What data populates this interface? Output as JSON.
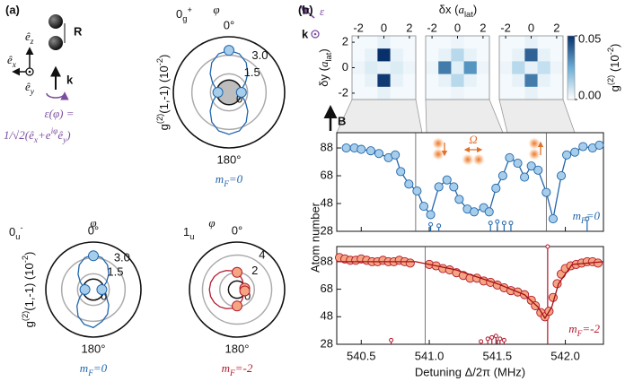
{
  "panel_a": {
    "label": "(a)",
    "ez": [
      "ê",
      "z"
    ],
    "ex": [
      "ê",
      "x"
    ],
    "ey": [
      "ê",
      "y"
    ],
    "R": "R",
    "k": "k",
    "pol_def": "ε(φ) =",
    "pol_expr": [
      "1/√2(",
      "ê",
      "x",
      "+e",
      "iφ",
      "ê",
      "y",
      ")"
    ]
  },
  "panel_b": {
    "label": "(b)",
    "eps": "ε",
    "k": "k",
    "B": "B",
    "omega": "Ω",
    "ylabel": "Atom number"
  },
  "chart_data": [
    {
      "type": "polar",
      "title": [
        "0",
        "g",
        "+"
      ],
      "angle_label": "φ",
      "angle_ticks": [
        {
          "value": 0,
          "label": "0°"
        },
        {
          "value": 180,
          "label": "180°"
        }
      ],
      "ylabel": [
        "g",
        "(2)",
        "(1,-1) (10",
        "-2",
        ")"
      ],
      "rlim": [
        0,
        4.5
      ],
      "rticks": [
        0,
        1.5,
        {
          "value": 3,
          "label": "3.0"
        }
      ],
      "reference_circle": 1,
      "reference_fill": "#bdbdbd",
      "curve": {
        "color": "#2166ac",
        "angles": [
          0,
          15,
          30,
          45,
          60,
          75,
          90,
          105,
          120,
          135,
          150,
          165,
          180,
          195,
          210,
          225,
          240,
          255,
          270,
          285,
          300,
          315,
          330,
          345
        ],
        "values": [
          3.4,
          3.23,
          2.78,
          2.15,
          1.53,
          1.07,
          0.9,
          1.07,
          1.53,
          2.15,
          2.78,
          3.23,
          3.4,
          3.23,
          2.78,
          2.15,
          1.53,
          1.07,
          0.9,
          1.07,
          1.53,
          2.15,
          2.78,
          3.23
        ]
      },
      "points": {
        "color": "#2166ac",
        "fill": "#a6cde9",
        "angles": [
          0,
          90,
          270
        ],
        "values": [
          3.4,
          1.0,
          0.9
        ]
      },
      "legend": [
        "m",
        "F",
        "=0"
      ]
    },
    {
      "type": "polar",
      "title": [
        "0",
        "u",
        "-"
      ],
      "angle_label": "φ",
      "angle_ticks": [
        {
          "value": 0,
          "label": "0°"
        },
        {
          "value": 180,
          "label": "180°"
        }
      ],
      "ylabel": [
        "g",
        "(2)",
        "(1,-1) (10",
        "-2",
        ")"
      ],
      "rlim": [
        0,
        4.5
      ],
      "rticks": [
        0,
        1.5,
        {
          "value": 3,
          "label": "3.0"
        }
      ],
      "reference_circle": 1,
      "curve": {
        "color": "#2166ac",
        "angles": [
          0,
          15,
          30,
          45,
          60,
          75,
          90,
          105,
          120,
          135,
          150,
          165,
          180,
          195,
          210,
          225,
          240,
          255,
          270,
          285,
          300,
          315,
          330,
          345
        ],
        "values": [
          3.3,
          3.13,
          2.68,
          2.05,
          1.43,
          0.97,
          0.8,
          0.97,
          1.43,
          2.05,
          2.68,
          3.13,
          3.6,
          3.4,
          2.9,
          2.2,
          1.5,
          1.0,
          0.8,
          0.97,
          1.43,
          2.05,
          2.68,
          3.13
        ]
      },
      "points": {
        "color": "#2166ac",
        "fill": "#a6cde9",
        "angles": [
          0,
          90,
          270
        ],
        "values": [
          3.2,
          0.8,
          0.8
        ]
      },
      "legend": [
        "m",
        "F",
        "=0"
      ]
    },
    {
      "type": "polar",
      "title": [
        "1",
        "u"
      ],
      "angle_label": "φ",
      "angle_ticks": [
        {
          "value": 0,
          "label": "0°"
        },
        {
          "value": 180,
          "label": "180°"
        }
      ],
      "rlim": [
        0,
        5.5
      ],
      "rticks": [
        0,
        2,
        4
      ],
      "reference_circle": 1,
      "curve": {
        "color": "#b2182b",
        "angles": [
          0,
          15,
          30,
          45,
          60,
          75,
          90,
          105,
          120,
          135,
          150,
          165,
          180,
          195,
          210,
          225,
          240,
          255,
          270,
          285,
          300,
          315,
          330,
          345
        ],
        "values": [
          1.9,
          1.56,
          1.25,
          0.98,
          0.77,
          0.64,
          0.6,
          0.64,
          0.77,
          0.98,
          1.25,
          1.56,
          1.9,
          2.24,
          2.55,
          2.82,
          3.03,
          3.16,
          3.2,
          3.16,
          3.03,
          2.82,
          2.55,
          2.24
        ]
      },
      "points": {
        "color": "#b2182b",
        "fill": "#f4a582",
        "angles": [
          0,
          80,
          100,
          180
        ],
        "values": [
          2.0,
          0.9,
          0.9,
          1.9
        ]
      },
      "legend": [
        "m",
        "F",
        "=-2"
      ]
    },
    {
      "type": "heatmap",
      "xlabel": [
        "δx (",
        "a",
        "lat",
        ")"
      ],
      "ylabel": [
        "δy (",
        "a",
        "lat",
        ")"
      ],
      "xlim": [
        -2.5,
        2.5
      ],
      "ylim": [
        -2.5,
        2.5
      ],
      "xticks": [
        -2,
        0,
        2
      ],
      "yticks": [
        -2,
        0,
        2
      ],
      "clim": [
        0,
        0.05
      ],
      "cticks": [
        {
          "value": 0,
          "label": "0.00"
        },
        {
          "value": 0.05,
          "label": "0.05"
        }
      ],
      "clabel": [
        "g",
        "(2)",
        " (10",
        "-2",
        ")"
      ],
      "colormap": [
        "#ffffff",
        "#6baed6",
        "#08306b"
      ],
      "images": [
        [
          [
            0.002,
            0.002,
            0.004,
            0.002,
            0.002
          ],
          [
            0.002,
            0.004,
            0.05,
            0.004,
            0.002
          ],
          [
            0.003,
            0.006,
            0.004,
            0.006,
            0.003
          ],
          [
            0.002,
            0.004,
            0.048,
            0.004,
            0.002
          ],
          [
            0.002,
            0.002,
            0.004,
            0.002,
            0.002
          ]
        ],
        [
          [
            0.002,
            0.002,
            0.003,
            0.002,
            0.002
          ],
          [
            0.002,
            0.004,
            0.012,
            0.004,
            0.002
          ],
          [
            0.003,
            0.035,
            0.005,
            0.03,
            0.003
          ],
          [
            0.002,
            0.004,
            0.012,
            0.004,
            0.002
          ],
          [
            0.002,
            0.002,
            0.003,
            0.002,
            0.002
          ]
        ],
        [
          [
            0.002,
            0.002,
            0.004,
            0.002,
            0.002
          ],
          [
            0.002,
            0.004,
            0.04,
            0.004,
            0.002
          ],
          [
            0.003,
            0.012,
            0.004,
            0.01,
            0.003
          ],
          [
            0.002,
            0.004,
            0.035,
            0.004,
            0.002
          ],
          [
            0.002,
            0.002,
            0.004,
            0.002,
            0.002
          ]
        ]
      ]
    },
    {
      "type": "scatter",
      "xlim": [
        540.32,
        542.28
      ],
      "ylim": [
        28,
        99
      ],
      "xticks": [
        540.5,
        541,
        541.5,
        542
      ],
      "xtick_labels": false,
      "yticks": [
        28,
        48,
        68,
        88
      ],
      "vlines": [
        540.9,
        541.86
      ],
      "series": [
        {
          "color": "#2166ac",
          "fill": "#a6cde9",
          "line": true,
          "x": [
            540.39,
            540.45,
            540.5,
            540.57,
            540.63,
            540.7,
            540.75,
            540.79,
            540.85,
            540.91,
            540.96,
            541.01,
            541.07,
            541.13,
            541.18,
            541.22,
            541.28,
            541.33,
            541.4,
            541.44,
            541.49,
            541.54,
            541.59,
            541.65,
            541.7,
            541.75,
            541.8,
            541.86,
            541.91,
            541.97,
            542.01,
            542.07,
            542.13,
            542.2,
            542.25
          ],
          "values": [
            88,
            88,
            87,
            86,
            84,
            81,
            83,
            71,
            62,
            57,
            46,
            40,
            60,
            65,
            60,
            51,
            44,
            42,
            45,
            42,
            59,
            68,
            81,
            77,
            67,
            75,
            72,
            56,
            37,
            68,
            83,
            85,
            89,
            88,
            90
          ]
        }
      ],
      "stems": {
        "color": "#2166ac",
        "x": [
          541.01,
          541.07,
          541.45,
          541.5,
          541.55,
          541.6,
          542.16
        ],
        "values": [
          33,
          32,
          34,
          35,
          34,
          34,
          37
        ]
      },
      "legend": [
        "m",
        "F",
        "=0"
      ]
    },
    {
      "type": "scatter",
      "xlim": [
        540.32,
        542.28
      ],
      "ylim": [
        28,
        99
      ],
      "xticks": [
        540.5,
        {
          "value": 541,
          "label": "541.0"
        },
        541.5,
        {
          "value": 542,
          "label": "542.0"
        }
      ],
      "yticks": [
        28,
        48,
        68,
        88
      ],
      "xlabel": "Detuning Δ/2π (MHz)",
      "vlines": [
        540.97,
        541.87
      ],
      "series": [
        {
          "color": "#b2182b",
          "fill": "#f4a582",
          "line": false,
          "x": [
            540.34,
            540.38,
            540.42,
            540.46,
            540.5,
            540.54,
            540.58,
            540.62,
            540.66,
            540.7,
            540.74,
            540.78,
            540.82,
            540.86,
            541.0,
            541.05,
            541.1,
            541.15,
            541.2,
            541.25,
            541.3,
            541.35,
            541.4,
            541.45,
            541.5,
            541.55,
            541.6,
            541.65,
            541.7,
            541.75,
            541.78,
            541.82,
            541.85,
            541.88,
            541.91,
            541.94,
            541.97,
            542.0,
            542.04,
            542.08,
            542.12,
            542.16,
            542.2,
            542.24
          ],
          "values": [
            91,
            90,
            89,
            89,
            90,
            89,
            88,
            88,
            89,
            88,
            88,
            89,
            88,
            87,
            86,
            85,
            83,
            82,
            80,
            78,
            76,
            76,
            74,
            73,
            71,
            69,
            67,
            66,
            64,
            60,
            56,
            51,
            48,
            52,
            62,
            72,
            79,
            83,
            85,
            86,
            87,
            88,
            88,
            87
          ]
        },
        {
          "color": "#a50f15",
          "line": true,
          "marker": false,
          "x": [
            540.32,
            540.9,
            541.2,
            541.5,
            541.7,
            541.8,
            541.85,
            541.9,
            541.95,
            542.05,
            542.28
          ],
          "values": [
            88,
            88,
            82,
            72,
            64,
            55,
            47,
            55,
            72,
            86,
            88
          ]
        }
      ],
      "stems": {
        "color": "#b2182b",
        "x": [
          540.72,
          541.38,
          541.43,
          541.46,
          541.49,
          541.52,
          541.55,
          541.87
        ],
        "values": [
          31,
          30,
          32,
          33,
          34,
          32,
          31,
          99
        ]
      },
      "legend": [
        "m",
        "F",
        "=-2"
      ]
    }
  ]
}
